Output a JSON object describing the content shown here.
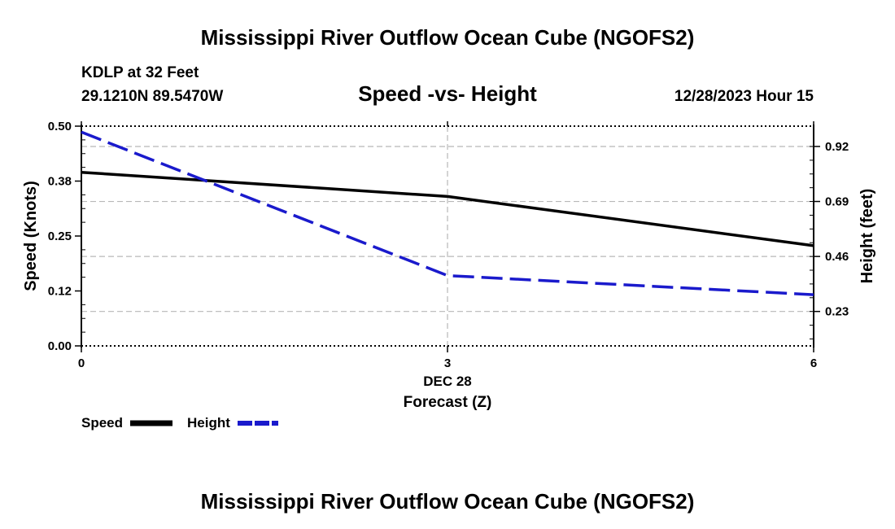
{
  "header": {
    "main_title": "Mississippi River Outflow Ocean Cube (NGOFS2)",
    "station_line": "KDLP at 32 Feet",
    "coords_line": "29.1210N  89.5470W",
    "date_line": "12/28/2023 Hour 15"
  },
  "footer": {
    "repeated_title": "Mississippi River Outflow Ocean Cube (NGOFS2)"
  },
  "legend": {
    "speed_label": "Speed",
    "height_label": "Height"
  },
  "chart_data": {
    "type": "line",
    "title": "Speed -vs- Height",
    "xlabel": "Forecast (Z)",
    "x_date_label": "DEC 28",
    "ylabel_left": "Speed (Knots)",
    "ylabel_right": "Height (feet)",
    "x": [
      0,
      3,
      6
    ],
    "x_tick_labels": [
      "0",
      "3",
      "6"
    ],
    "xlim": [
      0,
      6
    ],
    "ylim_left": [
      0,
      0.5
    ],
    "ylim_right": [
      0.086,
      1.005
    ],
    "left_ticks": [
      0.0,
      0.125,
      0.25,
      0.375,
      0.5
    ],
    "left_tick_labels": [
      "0.00",
      "0.12",
      "0.25",
      "0.38",
      "0.50"
    ],
    "right_ticks": [
      0.23,
      0.46,
      0.69,
      0.92
    ],
    "right_tick_labels": [
      "0.23",
      "0.46",
      "0.69",
      "0.92"
    ],
    "grid": true,
    "legend_position": "bottom-left",
    "series": [
      {
        "name": "Speed",
        "axis": "left",
        "color": "#000000",
        "style": "solid",
        "values": [
          0.395,
          0.34,
          0.228
        ]
      },
      {
        "name": "Height",
        "axis": "right",
        "color": "#1a1acc",
        "style": "dashed",
        "values": [
          0.98,
          0.38,
          0.3
        ]
      }
    ]
  }
}
